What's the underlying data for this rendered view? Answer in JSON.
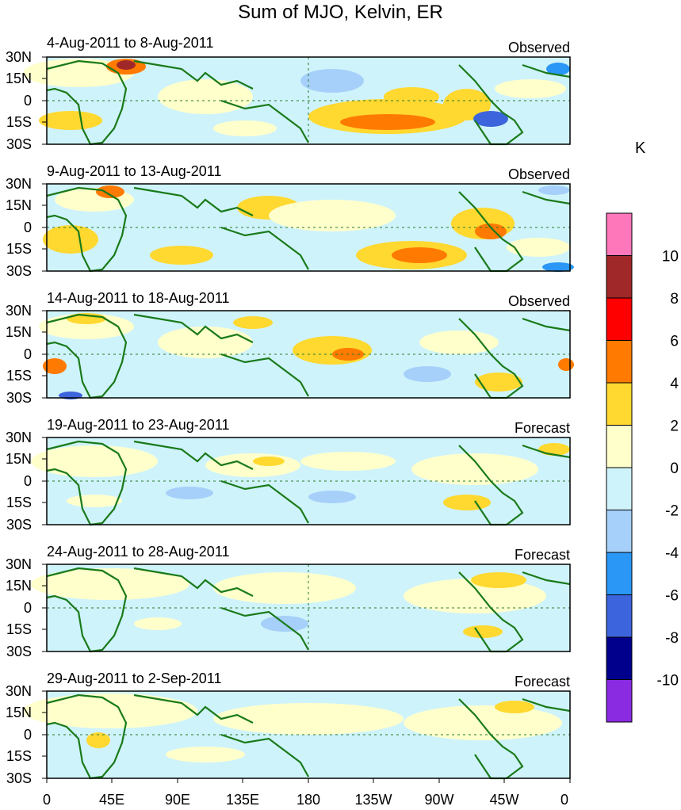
{
  "title": "Sum of MJO, Kelvin, ER",
  "units": "K",
  "lat_labels": [
    "30N",
    "15N",
    "0",
    "15S",
    "30S"
  ],
  "lon_labels": [
    "0",
    "45E",
    "90E",
    "135E",
    "180",
    "135W",
    "90W",
    "45W",
    "0"
  ],
  "panels": [
    {
      "date_range": "4-Aug-2011 to 8-Aug-2011",
      "kind": "Observed"
    },
    {
      "date_range": "9-Aug-2011 to 13-Aug-2011",
      "kind": "Observed"
    },
    {
      "date_range": "14-Aug-2011 to 18-Aug-2011",
      "kind": "Observed"
    },
    {
      "date_range": "19-Aug-2011 to 23-Aug-2011",
      "kind": "Forecast"
    },
    {
      "date_range": "24-Aug-2011 to 28-Aug-2011",
      "kind": "Forecast"
    },
    {
      "date_range": "29-Aug-2011 to 2-Sep-2011",
      "kind": "Forecast"
    }
  ],
  "colorbar": {
    "labels": [
      "10",
      "8",
      "6",
      "4",
      "2",
      "0",
      "-2",
      "-4",
      "-6",
      "-8",
      "-10"
    ],
    "colors": [
      "#ff77bb",
      "#a02828",
      "#ff0000",
      "#ff7a00",
      "#ffd830",
      "#ffffcc",
      "#cff3fb",
      "#a6d0fa",
      "#2a96f5",
      "#3c64dc",
      "#00008c",
      "#8a2be2"
    ]
  },
  "colors": {
    "land": "#1a7a1a",
    "grid": "#2a7a2a"
  }
}
